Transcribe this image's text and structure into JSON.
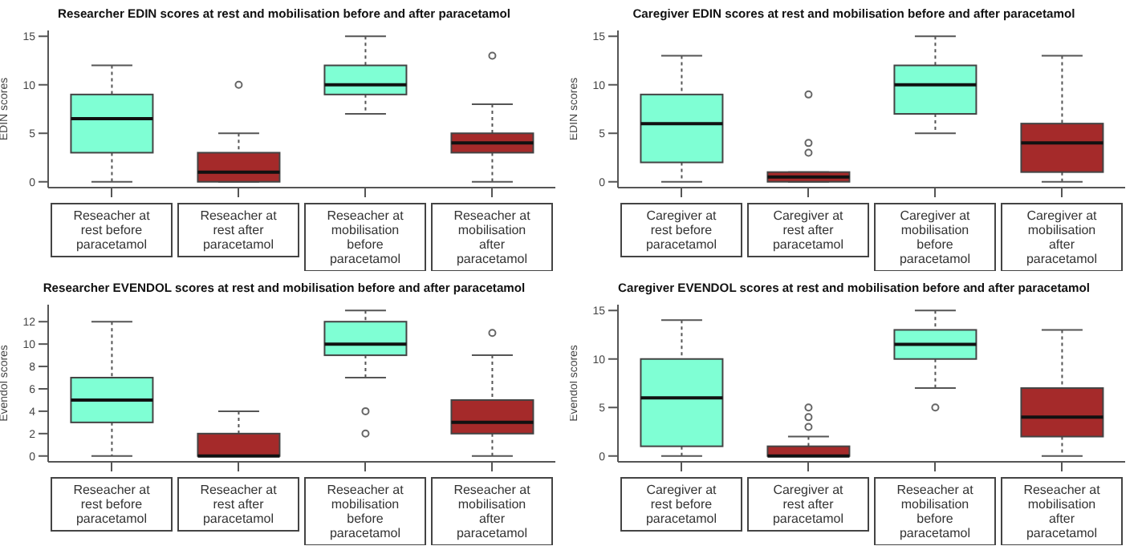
{
  "chart_data": [
    {
      "type": "box",
      "title": "Researcher EDIN scores at rest and mobilisation  before and after paracetamol",
      "ylabel": "EDIN scores",
      "categories": [
        "Reseacher at rest before paracetamol",
        "Reseacher at rest after paracetamol",
        "Reseacher at mobilisation before paracetamol",
        "Reseacher at mobilisation after paracetamol"
      ],
      "colors": [
        "#7fffd4",
        "#a52a2a",
        "#7fffd4",
        "#a52a2a"
      ],
      "ylim": [
        -0.6,
        15.6
      ],
      "yticks": [
        0,
        5,
        10,
        15
      ],
      "grid": false,
      "legend": false,
      "boxes": [
        {
          "low": 0,
          "q1": 3,
          "median": 6.5,
          "q3": 9,
          "high": 12
        },
        {
          "low": 0,
          "q1": 0,
          "median": 1,
          "q3": 3,
          "high": 5,
          "outliers": [
            10
          ]
        },
        {
          "low": 7,
          "q1": 9,
          "median": 10,
          "q3": 12,
          "high": 15
        },
        {
          "low": 0,
          "q1": 3,
          "median": 4,
          "q3": 5,
          "high": 8,
          "outliers": [
            13
          ]
        }
      ]
    },
    {
      "type": "box",
      "title": "Caregiver EDIN scores at rest and mobilisation  before and after paracetamol",
      "ylabel": "EDIN scores",
      "categories": [
        "Caregiver at rest before paracetamol",
        "Caregiver at rest after paracetamol",
        "Caregiver at mobilisation before paracetamol",
        "Caregiver at mobilisation after paracetamol"
      ],
      "colors": [
        "#7fffd4",
        "#a52a2a",
        "#7fffd4",
        "#a52a2a"
      ],
      "ylim": [
        -0.6,
        15.6
      ],
      "yticks": [
        0,
        5,
        10,
        15
      ],
      "grid": false,
      "legend": false,
      "boxes": [
        {
          "low": 0,
          "q1": 2,
          "median": 6,
          "q3": 9,
          "high": 13
        },
        {
          "low": 0,
          "q1": 0,
          "median": 0.5,
          "q3": 1,
          "high": 1,
          "outliers": [
            3,
            4,
            9
          ]
        },
        {
          "low": 5,
          "q1": 7,
          "median": 10,
          "q3": 12,
          "high": 15
        },
        {
          "low": 0,
          "q1": 1,
          "median": 4,
          "q3": 6,
          "high": 13
        }
      ]
    },
    {
      "type": "box",
      "title": "Researcher EVENDOL scores at rest and mobilisation  before and after paracetamol",
      "ylabel": "Evendol scores",
      "categories": [
        "Reseacher at rest before paracetamol",
        "Reseacher at rest after paracetamol",
        "Reseacher at mobilisation before paracetamol",
        "Reseacher at mobilisation after paracetamol"
      ],
      "colors": [
        "#7fffd4",
        "#a52a2a",
        "#7fffd4",
        "#a52a2a"
      ],
      "ylim": [
        -0.52,
        13.52
      ],
      "yticks": [
        0,
        2,
        4,
        6,
        8,
        10,
        12
      ],
      "grid": false,
      "legend": false,
      "boxes": [
        {
          "low": 0,
          "q1": 3,
          "median": 5,
          "q3": 7,
          "high": 12
        },
        {
          "low": 0,
          "q1": 0,
          "median": 0,
          "q3": 2,
          "high": 4
        },
        {
          "low": 7,
          "q1": 9,
          "median": 10,
          "q3": 12,
          "high": 13,
          "outliers": [
            2,
            4
          ]
        },
        {
          "low": 0,
          "q1": 2,
          "median": 3,
          "q3": 5,
          "high": 9,
          "outliers": [
            11
          ]
        }
      ]
    },
    {
      "type": "box",
      "title": "Caregiver EVENDOL scores at rest and mobilisation  before and after paracetamol",
      "ylabel": "Evendol scores",
      "categories": [
        "Caregiver at rest before paracetamol",
        "Caregiver at rest after paracetamol",
        "Reseacher at mobilisation before paracetamol",
        "Reseacher at mobilisation after paracetamol"
      ],
      "colors": [
        "#7fffd4",
        "#a52a2a",
        "#7fffd4",
        "#a52a2a"
      ],
      "ylim": [
        -0.6,
        15.6
      ],
      "yticks": [
        0,
        5,
        10,
        15
      ],
      "grid": false,
      "legend": false,
      "boxes": [
        {
          "low": 0,
          "q1": 1,
          "median": 6,
          "q3": 10,
          "high": 14
        },
        {
          "low": 0,
          "q1": 0,
          "median": 0,
          "q3": 1,
          "high": 2,
          "outliers": [
            3,
            4,
            5
          ]
        },
        {
          "low": 7,
          "q1": 10,
          "median": 11.5,
          "q3": 13,
          "high": 15,
          "outliers": [
            5
          ]
        },
        {
          "low": 0,
          "q1": 2,
          "median": 4,
          "q3": 7,
          "high": 13
        }
      ]
    }
  ]
}
